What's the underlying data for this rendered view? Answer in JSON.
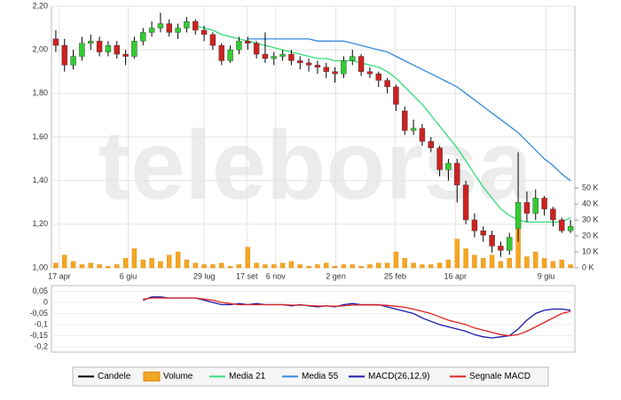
{
  "chart_data": [
    {
      "type": "candlestick",
      "watermark": "teleborsa",
      "xlim": [
        -0.5,
        59.5
      ],
      "xticks": [
        {
          "value": 0.4,
          "label": "17 apr"
        },
        {
          "value": 8.3,
          "label": "6 giu"
        },
        {
          "value": 17,
          "label": "29 lug"
        },
        {
          "value": 21.9,
          "label": "17 set"
        },
        {
          "value": 25.2,
          "label": "6 nov"
        },
        {
          "value": 32.1,
          "label": "2 gen"
        },
        {
          "value": 38.9,
          "label": "25 feb"
        },
        {
          "value": 45.8,
          "label": "16 apr"
        },
        {
          "value": 56.2,
          "label": "9 giu"
        }
      ],
      "ylim": [
        1.0,
        2.2
      ],
      "yticks": [
        {
          "value": 1.0,
          "label": "1,00"
        },
        {
          "value": 1.2,
          "label": "1,20"
        },
        {
          "value": 1.4,
          "label": "1,40"
        },
        {
          "value": 1.6,
          "label": "1,60"
        },
        {
          "value": 1.8,
          "label": "1,80"
        },
        {
          "value": 2.0,
          "label": "2,00"
        },
        {
          "value": 2.2,
          "label": "2,20"
        }
      ],
      "y2lim": [
        0,
        164
      ],
      "y2ticks": [
        {
          "value": 0,
          "label": "0 K"
        },
        {
          "value": 10,
          "label": "10 K"
        },
        {
          "value": 20,
          "label": "20 K"
        },
        {
          "value": 30,
          "label": "30 K"
        },
        {
          "value": 40,
          "label": "40 K"
        },
        {
          "value": 50,
          "label": "50 K"
        }
      ],
      "grid": true,
      "candles": {
        "name": "Candele",
        "color": "#000000",
        "up_color": "#33cc33",
        "down_color": "#cc2222",
        "open": [
          2.05,
          2.02,
          1.93,
          1.97,
          2.03,
          2.04,
          1.99,
          2.02,
          1.98,
          1.97,
          2.04,
          2.08,
          2.1,
          2.12,
          2.08,
          2.1,
          2.13,
          2.09,
          2.07,
          2.02,
          1.95,
          2.0,
          2.04,
          2.03,
          1.98,
          1.96,
          1.97,
          1.98,
          1.95,
          1.94,
          1.93,
          1.92,
          1.9,
          1.89,
          1.95,
          1.97,
          1.9,
          1.89,
          1.86,
          1.83,
          1.72,
          1.63,
          1.64,
          1.58,
          1.55,
          1.45,
          1.48,
          1.38,
          1.22,
          1.17,
          1.15,
          1.1,
          1.08,
          1.18,
          1.3,
          1.25,
          1.32,
          1.27,
          1.22,
          1.17
        ],
        "high": [
          2.09,
          2.05,
          2.0,
          2.06,
          2.07,
          2.06,
          2.04,
          2.04,
          2.0,
          2.06,
          2.1,
          2.13,
          2.17,
          2.14,
          2.12,
          2.15,
          2.14,
          2.11,
          2.08,
          2.03,
          2.02,
          2.06,
          2.06,
          2.04,
          2.08,
          1.99,
          2.0,
          2.0,
          1.97,
          1.96,
          1.95,
          1.94,
          1.92,
          1.97,
          2.0,
          1.98,
          1.92,
          1.9,
          1.87,
          1.84,
          1.74,
          1.68,
          1.66,
          1.6,
          1.56,
          1.5,
          1.5,
          1.4,
          1.25,
          1.19,
          1.17,
          1.12,
          1.16,
          1.53,
          1.35,
          1.36,
          1.33,
          1.28,
          1.23,
          1.22
        ],
        "low": [
          1.99,
          1.9,
          1.91,
          1.95,
          2.0,
          1.97,
          1.97,
          1.96,
          1.93,
          1.96,
          2.02,
          2.06,
          2.08,
          2.06,
          2.05,
          2.08,
          2.07,
          2.04,
          2.0,
          1.93,
          1.94,
          1.98,
          2.0,
          1.96,
          1.94,
          1.93,
          1.95,
          1.93,
          1.91,
          1.9,
          1.89,
          1.87,
          1.85,
          1.87,
          1.93,
          1.88,
          1.87,
          1.83,
          1.8,
          1.72,
          1.61,
          1.61,
          1.56,
          1.53,
          1.42,
          1.4,
          1.3,
          1.2,
          1.14,
          1.12,
          1.07,
          1.05,
          1.06,
          1.12,
          1.21,
          1.22,
          1.24,
          1.19,
          1.16,
          1.16
        ],
        "close": [
          2.02,
          1.93,
          1.97,
          2.03,
          2.04,
          1.99,
          2.02,
          1.98,
          1.97,
          2.04,
          2.08,
          2.1,
          2.12,
          2.08,
          2.1,
          2.13,
          2.09,
          2.07,
          2.02,
          1.95,
          2.0,
          2.04,
          2.03,
          1.98,
          1.96,
          1.97,
          1.98,
          1.95,
          1.94,
          1.93,
          1.92,
          1.9,
          1.89,
          1.95,
          1.97,
          1.9,
          1.89,
          1.86,
          1.83,
          1.75,
          1.63,
          1.64,
          1.58,
          1.55,
          1.45,
          1.48,
          1.38,
          1.22,
          1.17,
          1.15,
          1.1,
          1.08,
          1.14,
          1.3,
          1.25,
          1.32,
          1.27,
          1.22,
          1.17,
          1.19
        ]
      },
      "volume": {
        "name": "Volume",
        "color": "#f5a623",
        "axis": "y2",
        "values": [
          3,
          8,
          4,
          2,
          3,
          2,
          1,
          2,
          6,
          12,
          5,
          6,
          4,
          8,
          10,
          5,
          3,
          2,
          2,
          3,
          1,
          2,
          13,
          3,
          2,
          2,
          3,
          4,
          2,
          1,
          2,
          3,
          1,
          2,
          2,
          1,
          2,
          3,
          3,
          10,
          6,
          3,
          2,
          2,
          3,
          5,
          18,
          12,
          8,
          6,
          8,
          4,
          6,
          38,
          7,
          10,
          6,
          4,
          5,
          2
        ]
      },
      "series": [
        {
          "name": "Media 21",
          "color": "#33dd77",
          "values": [
            null,
            null,
            null,
            null,
            null,
            null,
            null,
            null,
            null,
            null,
            null,
            null,
            null,
            null,
            null,
            null,
            2.11,
            2.1,
            2.09,
            2.07,
            2.06,
            2.05,
            2.04,
            2.03,
            2.02,
            2.01,
            2.0,
            1.99,
            1.98,
            1.97,
            1.96,
            1.96,
            1.95,
            1.95,
            1.95,
            1.94,
            1.93,
            1.92,
            1.9,
            1.87,
            1.83,
            1.79,
            1.75,
            1.7,
            1.65,
            1.6,
            1.55,
            1.49,
            1.43,
            1.37,
            1.32,
            1.27,
            1.24,
            1.22,
            1.21,
            1.21,
            1.21,
            1.21,
            1.21,
            1.23
          ]
        },
        {
          "name": "Media 55",
          "color": "#3388dd",
          "values": [
            null,
            null,
            null,
            null,
            null,
            null,
            null,
            null,
            null,
            null,
            null,
            null,
            null,
            null,
            null,
            null,
            null,
            null,
            null,
            null,
            null,
            null,
            2.05,
            2.05,
            2.05,
            2.05,
            2.05,
            2.05,
            2.05,
            2.05,
            2.04,
            2.04,
            2.04,
            2.04,
            2.03,
            2.02,
            2.01,
            2.0,
            1.99,
            1.97,
            1.95,
            1.93,
            1.91,
            1.89,
            1.87,
            1.85,
            1.83,
            1.8,
            1.77,
            1.74,
            1.71,
            1.68,
            1.65,
            1.62,
            1.58,
            1.54,
            1.5,
            1.47,
            1.43,
            1.4
          ]
        }
      ]
    },
    {
      "type": "line",
      "xlim": [
        -0.5,
        59.5
      ],
      "ylim": [
        -0.224,
        0.076
      ],
      "yticks": [
        {
          "value": 0.05,
          "label": "0,05"
        },
        0,
        {
          "value": -0.05,
          "label": "-0,05"
        },
        {
          "value": -0.1,
          "label": "-0,1"
        },
        {
          "value": -0.15,
          "label": "-0,15"
        },
        {
          "value": -0.2,
          "label": "-0,2"
        }
      ],
      "series": [
        {
          "name": "MACD(26,12,9)",
          "color": "#1a1aaa",
          "values": [
            null,
            null,
            null,
            null,
            null,
            null,
            null,
            null,
            null,
            null,
            0.01,
            0.025,
            0.025,
            0.02,
            0.02,
            0.02,
            0.02,
            0.01,
            0.0,
            -0.01,
            -0.01,
            -0.005,
            -0.01,
            -0.005,
            -0.01,
            -0.01,
            -0.01,
            -0.015,
            -0.01,
            -0.015,
            -0.02,
            -0.015,
            -0.02,
            -0.01,
            -0.005,
            -0.01,
            -0.01,
            -0.01,
            -0.02,
            -0.03,
            -0.04,
            -0.05,
            -0.07,
            -0.085,
            -0.1,
            -0.11,
            -0.12,
            -0.13,
            -0.145,
            -0.155,
            -0.16,
            -0.155,
            -0.15,
            -0.12,
            -0.08,
            -0.05,
            -0.035,
            -0.03,
            -0.03,
            -0.035
          ]
        },
        {
          "name": "Segnale MACD",
          "color": "#dd2222",
          "values": [
            null,
            null,
            null,
            null,
            null,
            null,
            null,
            null,
            null,
            null,
            0.015,
            0.02,
            0.02,
            0.02,
            0.02,
            0.02,
            0.02,
            0.015,
            0.01,
            0.0,
            -0.005,
            -0.01,
            -0.01,
            -0.01,
            -0.01,
            -0.01,
            -0.01,
            -0.012,
            -0.012,
            -0.014,
            -0.016,
            -0.016,
            -0.017,
            -0.015,
            -0.012,
            -0.011,
            -0.011,
            -0.011,
            -0.013,
            -0.017,
            -0.022,
            -0.03,
            -0.04,
            -0.05,
            -0.065,
            -0.08,
            -0.09,
            -0.1,
            -0.115,
            -0.125,
            -0.135,
            -0.145,
            -0.15,
            -0.145,
            -0.13,
            -0.11,
            -0.09,
            -0.07,
            -0.05,
            -0.04
          ]
        }
      ]
    }
  ]
}
